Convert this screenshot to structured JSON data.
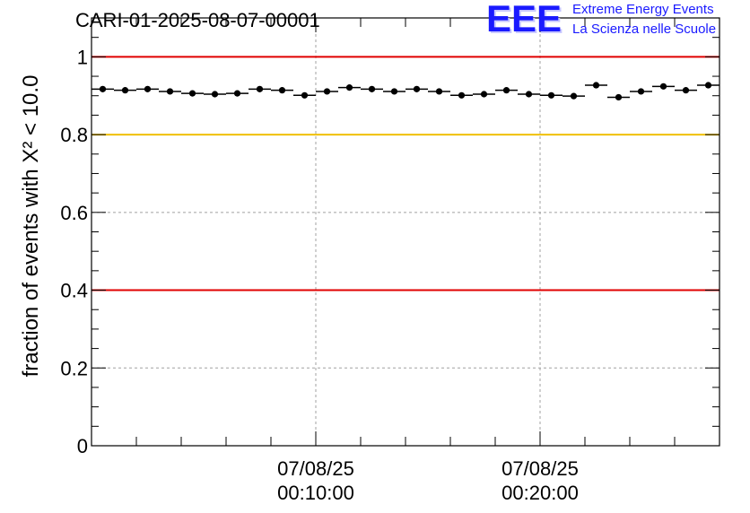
{
  "header": {
    "title": "CARI-01-2025-08-07-00001",
    "logo": {
      "mark": "EEE",
      "line1": "Extreme Energy Events",
      "line2": "La Scienza nelle Scuole",
      "color": "#1a1aff"
    }
  },
  "chart_data": {
    "type": "scatter",
    "title": "CARI-01-2025-08-07-00001",
    "ylabel": "fraction of events with X² < 10.0",
    "xlabel": "",
    "ylim": [
      0,
      1.1
    ],
    "y_ticks": [
      0,
      0.2,
      0.4,
      0.6,
      0.8,
      1
    ],
    "y_tick_labels": [
      "0",
      "0.2",
      "0.4",
      "0.6",
      "0.8",
      "1"
    ],
    "x_ticks": [
      {
        "time": "07/08/25 00:10:00",
        "line1": "07/08/25",
        "line2": "00:10:00"
      },
      {
        "time": "07/08/25 00:20:00",
        "line1": "07/08/25",
        "line2": "00:20:00"
      }
    ],
    "x_range": [
      "07/08/25 00:00:00",
      "07/08/25 00:28:00"
    ],
    "bin_width_minutes": 1,
    "grid": true,
    "reference_lines": [
      {
        "y": 1.0,
        "color": "#e00000"
      },
      {
        "y": 0.8,
        "color": "#f0c000"
      },
      {
        "y": 0.4,
        "color": "#e00000"
      }
    ],
    "series": [
      {
        "x_minutes": [
          0.5,
          1.5,
          2.5,
          3.5,
          4.5,
          5.5,
          6.5,
          7.5,
          8.5,
          9.5,
          10.5,
          11.5,
          12.5,
          13.5,
          14.5,
          15.5,
          16.5,
          17.5,
          18.5,
          19.5,
          20.5,
          21.5,
          22.5,
          23.5,
          24.5,
          25.5,
          26.5,
          27.5
        ],
        "values": [
          0.917,
          0.914,
          0.917,
          0.911,
          0.906,
          0.904,
          0.906,
          0.917,
          0.914,
          0.901,
          0.911,
          0.921,
          0.917,
          0.911,
          0.917,
          0.911,
          0.901,
          0.904,
          0.914,
          0.904,
          0.901,
          0.899,
          0.927,
          0.896,
          0.911,
          0.924,
          0.914,
          0.927
        ],
        "color": "#000000"
      }
    ]
  }
}
